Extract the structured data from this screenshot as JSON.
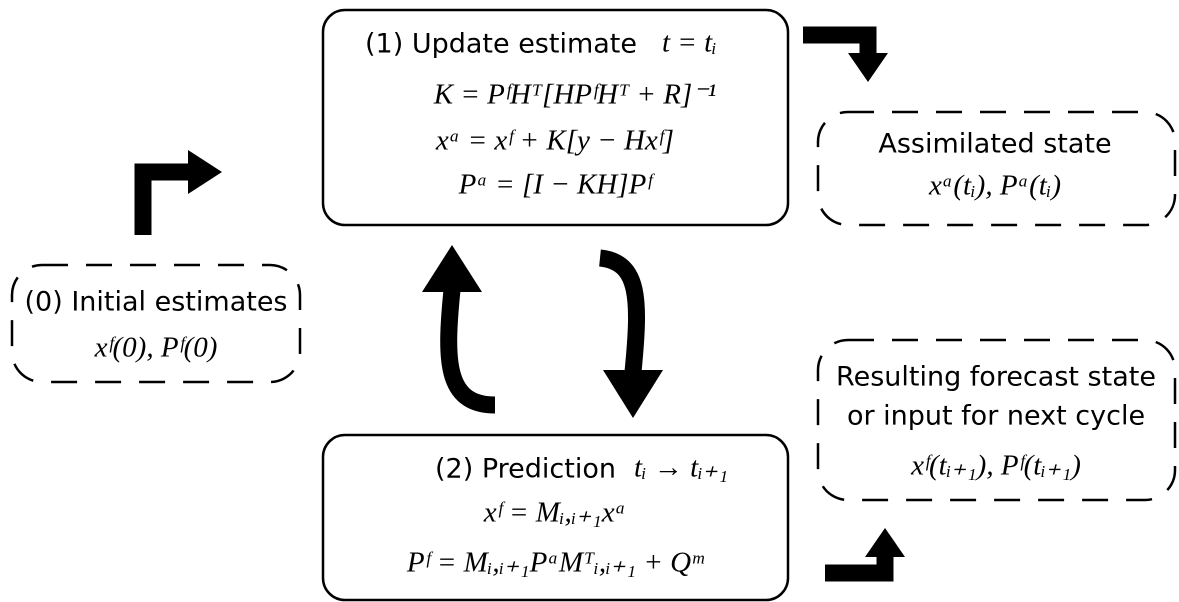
{
  "nodes": [
    {
      "title": "(1) Update estimate",
      "time": "t = tᵢ",
      "lines": [
        "K = PᶠHᵀ[HPᶠHᵀ + R]⁻¹",
        "xᵃ = xᶠ + K[y − Hxᶠ]",
        "Pᵃ = [I − KH]Pᶠ"
      ]
    },
    {
      "title": "Assimilated state",
      "lines": [
        "xᵃ(tᵢ), Pᵃ(tᵢ)"
      ]
    },
    {
      "title": "(0) Initial estimates",
      "lines": [
        "xᶠ(0), Pᶠ(0)"
      ]
    },
    {
      "title": "(2) Prediction",
      "time": "tᵢ → tᵢ₊₁",
      "lines": [
        "xᶠ = Mᵢ,ᵢ₊₁xᵃ",
        "Pᶠ = Mᵢ,ᵢ₊₁PᵃMᵀᵢ,ᵢ₊₁ + Qᵐ"
      ]
    },
    {
      "title": "Resulting forecast state",
      "subtitle": "or input for next cycle",
      "lines": [
        "xᶠ(tᵢ₊₁), Pᶠ(tᵢ₊₁)"
      ]
    }
  ]
}
